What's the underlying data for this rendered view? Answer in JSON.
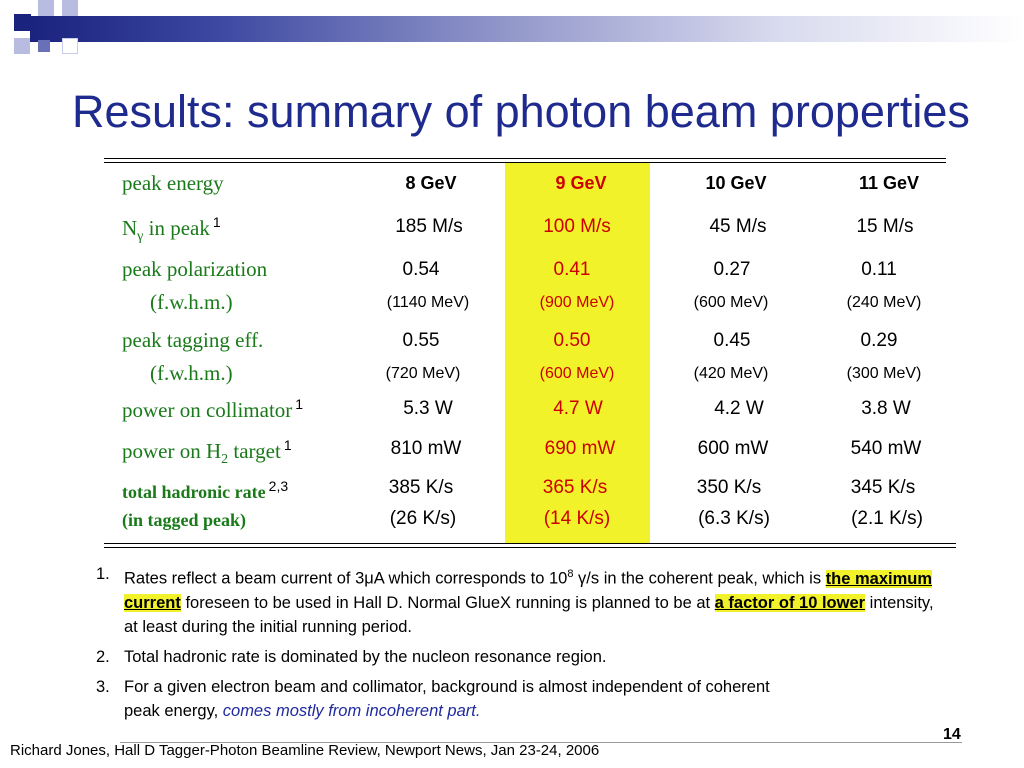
{
  "slide": {
    "title": "Results: summary of photon beam properties",
    "page_number": "14",
    "footer": "Richard Jones, Hall D Tagger-Photon Beamline Review, Newport News, Jan 23-24, 2006"
  },
  "table": {
    "columns": [
      "8 GeV",
      "9 GeV",
      "10 GeV",
      "11 GeV"
    ],
    "highlighted_column": "9 GeV",
    "rows": {
      "peak_energy": {
        "label": "peak energy"
      },
      "n_gamma": {
        "label_main": "N",
        "label_sub": "γ",
        "label_rest": " in peak",
        "note": "1",
        "values": [
          "185 M/s",
          "100 M/s",
          "45 M/s",
          "15 M/s"
        ]
      },
      "polarization": {
        "label": "peak polarization",
        "values": [
          "0.54",
          "0.41",
          "0.27",
          "0.11"
        ],
        "sub_label": "(f.w.h.m.)",
        "sub_values": [
          "(1140 MeV)",
          "(900 MeV)",
          "(600 MeV)",
          "(240 MeV)"
        ]
      },
      "tagging": {
        "label": "peak tagging eff.",
        "values": [
          "0.55",
          "0.50",
          "0.45",
          "0.29"
        ],
        "sub_label": "(f.w.h.m.)",
        "sub_values": [
          "(720 MeV)",
          "(600 MeV)",
          "(420 MeV)",
          "(300 MeV)"
        ]
      },
      "power_coll": {
        "label": "power on collimator",
        "note": "1",
        "values": [
          "5.3 W",
          "4.7 W",
          "4.2 W",
          "3.8 W"
        ]
      },
      "power_h2": {
        "label_main": "power on H",
        "label_sub": "2",
        "label_rest": " target",
        "note": "1",
        "values": [
          "810 mW",
          "690 mW",
          "600 mW",
          "540 mW"
        ]
      },
      "hadronic": {
        "label": "total hadronic rate",
        "note": "2,3",
        "values": [
          "385 K/s",
          "365 K/s",
          "350 K/s",
          "345 K/s"
        ],
        "sub_label": "(in tagged peak)",
        "sub_values": [
          "(26 K/s)",
          "(14 K/s)",
          "(6.3 K/s)",
          "(2.1 K/s)"
        ]
      }
    }
  },
  "notes": [
    {
      "num": "1.",
      "parts": [
        "Rates reflect a beam current of 3μA which corresponds to 10",
        "8",
        " γ/s in the coherent peak, which is ",
        "the maximum current",
        " foreseen to be used in Hall D.  Normal GlueX running is planned to be at ",
        "a factor of 10 lower",
        " intensity, at least during the initial running period."
      ]
    },
    {
      "num": "2.",
      "text": "Total hadronic rate is dominated by the nucleon resonance region."
    },
    {
      "num": "3.",
      "text": "For a given electron beam and collimator, background is almost independent of coherent peak energy, ",
      "emphasis": "comes mostly from incoherent part."
    }
  ],
  "colors": {
    "title": "#1f2a8e",
    "label_green": "#1a7a1a",
    "highlight": "#f2f22a",
    "value_red": "#cc0000"
  }
}
